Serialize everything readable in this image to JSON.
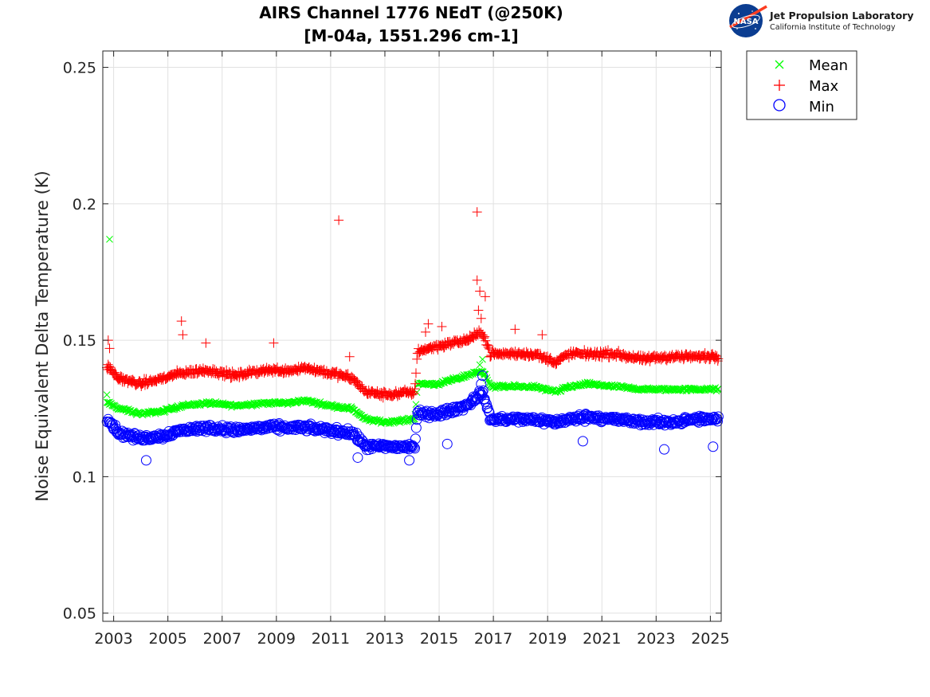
{
  "logo": {
    "nasa_text": "NASA",
    "org_name": "Jet Propulsion Laboratory",
    "org_sub": "California Institute of Technology"
  },
  "chart_data": {
    "type": "scatter",
    "title": "AIRS Channel 1776 NEdT (@250K)",
    "subtitle": "[M-04a, 1551.296 cm-1]",
    "xlabel": "",
    "ylabel": "Noise Equivalent Delta Temperature (K)",
    "xlim": [
      2002.6,
      2025.4
    ],
    "ylim": [
      0.047,
      0.256
    ],
    "x_ticks": [
      2003,
      2005,
      2007,
      2009,
      2011,
      2013,
      2015,
      2017,
      2019,
      2021,
      2023,
      2025
    ],
    "x_tick_labels": [
      "2003",
      "2005",
      "2007",
      "2009",
      "2011",
      "2013",
      "2015",
      "2017",
      "2019",
      "2021",
      "2023",
      "2025"
    ],
    "y_ticks": [
      0.05,
      0.1,
      0.15,
      0.2,
      0.25
    ],
    "y_tick_labels": [
      "0.05",
      "0.1",
      "0.15",
      "0.2",
      "0.25"
    ],
    "grid": true,
    "legend_position": "outside top-right",
    "legend": [
      "Mean",
      "Max",
      "Min"
    ],
    "series": [
      {
        "name": "Mean",
        "marker": "x",
        "color": "#00ff00",
        "baseline_x": [
          2002.8,
          2003.2,
          2004.0,
          2004.8,
          2005.5,
          2006.5,
          2007.5,
          2008.5,
          2009.5,
          2010.0,
          2011.0,
          2011.8,
          2012.3,
          2013.0,
          2014.1,
          2014.2,
          2015.0,
          2016.0,
          2016.6,
          2016.9,
          2017.5,
          2018.5,
          2019.3,
          2019.8,
          2020.5,
          2021.5,
          2022.5,
          2023.5,
          2024.5,
          2025.3
        ],
        "baseline_y": [
          0.127,
          0.125,
          0.123,
          0.124,
          0.126,
          0.127,
          0.126,
          0.127,
          0.127,
          0.128,
          0.126,
          0.125,
          0.121,
          0.12,
          0.121,
          0.134,
          0.134,
          0.137,
          0.139,
          0.133,
          0.133,
          0.133,
          0.131,
          0.133,
          0.134,
          0.133,
          0.132,
          0.132,
          0.132,
          0.132
        ],
        "outliers": [
          [
            2002.85,
            0.187
          ],
          [
            2002.75,
            0.13
          ],
          [
            2016.5,
            0.141
          ],
          [
            2016.6,
            0.143
          ],
          [
            2016.45,
            0.138
          ]
        ]
      },
      {
        "name": "Max",
        "marker": "+",
        "color": "#ff0000",
        "baseline_x": [
          2002.8,
          2003.2,
          2004.0,
          2004.8,
          2005.5,
          2006.5,
          2007.5,
          2008.5,
          2009.5,
          2010.0,
          2011.0,
          2011.8,
          2012.3,
          2013.0,
          2014.1,
          2014.2,
          2015.0,
          2016.0,
          2016.6,
          2016.9,
          2017.5,
          2018.5,
          2019.3,
          2019.8,
          2020.5,
          2021.5,
          2022.5,
          2023.5,
          2024.5,
          2025.3
        ],
        "baseline_y": [
          0.14,
          0.136,
          0.134,
          0.136,
          0.138,
          0.139,
          0.137,
          0.139,
          0.139,
          0.14,
          0.138,
          0.136,
          0.131,
          0.13,
          0.131,
          0.146,
          0.148,
          0.15,
          0.153,
          0.145,
          0.145,
          0.145,
          0.142,
          0.145,
          0.145,
          0.145,
          0.143,
          0.144,
          0.144,
          0.144
        ],
        "outliers": [
          [
            2002.8,
            0.15
          ],
          [
            2002.85,
            0.147
          ],
          [
            2005.5,
            0.157
          ],
          [
            2005.55,
            0.152
          ],
          [
            2006.4,
            0.149
          ],
          [
            2008.9,
            0.149
          ],
          [
            2011.3,
            0.194
          ],
          [
            2011.7,
            0.144
          ],
          [
            2016.4,
            0.197
          ],
          [
            2016.4,
            0.172
          ],
          [
            2016.5,
            0.168
          ],
          [
            2016.7,
            0.166
          ],
          [
            2016.45,
            0.161
          ],
          [
            2016.55,
            0.158
          ],
          [
            2017.8,
            0.154
          ],
          [
            2018.8,
            0.152
          ],
          [
            2014.6,
            0.156
          ],
          [
            2014.5,
            0.153
          ],
          [
            2015.1,
            0.155
          ]
        ]
      },
      {
        "name": "Min",
        "marker": "o",
        "color": "#0000ff",
        "baseline_x": [
          2002.8,
          2003.2,
          2004.0,
          2004.8,
          2005.5,
          2006.5,
          2007.5,
          2008.5,
          2009.5,
          2010.0,
          2011.0,
          2011.8,
          2012.3,
          2013.0,
          2014.1,
          2014.2,
          2015.0,
          2016.0,
          2016.6,
          2016.9,
          2017.5,
          2018.5,
          2019.3,
          2019.8,
          2020.5,
          2021.5,
          2022.5,
          2023.5,
          2024.5,
          2025.3
        ],
        "baseline_y": [
          0.121,
          0.116,
          0.114,
          0.115,
          0.117,
          0.118,
          0.117,
          0.118,
          0.118,
          0.118,
          0.117,
          0.116,
          0.111,
          0.111,
          0.111,
          0.123,
          0.123,
          0.126,
          0.131,
          0.121,
          0.121,
          0.121,
          0.12,
          0.121,
          0.122,
          0.121,
          0.12,
          0.12,
          0.121,
          0.121
        ],
        "outliers": [
          [
            2004.2,
            0.106
          ],
          [
            2013.9,
            0.106
          ],
          [
            2023.3,
            0.11
          ],
          [
            2025.1,
            0.111
          ],
          [
            2016.6,
            0.137
          ],
          [
            2016.55,
            0.134
          ],
          [
            2016.5,
            0.13
          ],
          [
            2012.0,
            0.107
          ],
          [
            2020.3,
            0.113
          ],
          [
            2015.3,
            0.112
          ]
        ]
      }
    ]
  }
}
